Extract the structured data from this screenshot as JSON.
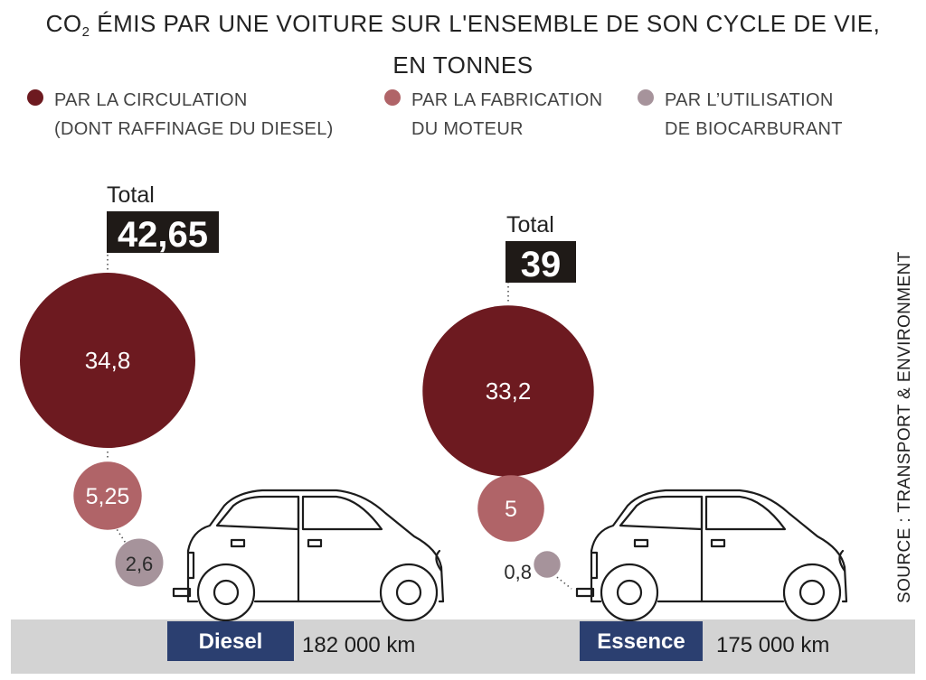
{
  "title": {
    "co": "CO",
    "sub": "2",
    "line1_rest": " ÉMIS PAR UNE VOITURE SUR L'ENSEMBLE DE SON CYCLE DE VIE,",
    "line2": "EN TONNES"
  },
  "legend": [
    {
      "line1": "PAR LA CIRCULATION",
      "line2": "(DONT RAFFINAGE DU DIESEL)",
      "color": "#6d1a20"
    },
    {
      "line1": "PAR LA FABRICATION",
      "line2": "DU MOTEUR",
      "color": "#b06468"
    },
    {
      "line1": "PAR L’UTILISATION",
      "line2": "DE BIOCARBURANT",
      "color": "#a6939b"
    }
  ],
  "source": "SOURCE : TRANSPORT & ENVIRONMENT",
  "colors": {
    "circulation": "#6d1a20",
    "fabrication": "#b06468",
    "biocarburant": "#a6939b",
    "label_box": "#1f1a17",
    "fuel_box": "#2b3f70",
    "ground": "#d3d3d3"
  },
  "chart_data": {
    "type": "bubble",
    "series_names": [
      "PAR LA CIRCULATION (DONT RAFFINAGE DU DIESEL)",
      "PAR LA FABRICATION DU MOTEUR",
      "PAR L’UTILISATION DE BIOCARBURANT"
    ],
    "groups": [
      {
        "fuel": "Diesel",
        "distance": "182 000 km",
        "total_label": "Total",
        "total": "42,65",
        "values": [
          {
            "label": "34,8",
            "value": 34.8
          },
          {
            "label": "5,25",
            "value": 5.25
          },
          {
            "label": "2,6",
            "value": 2.6
          }
        ]
      },
      {
        "fuel": "Essence",
        "distance": "175 000 km",
        "total_label": "Total",
        "total": "39",
        "values": [
          {
            "label": "33,2",
            "value": 33.2
          },
          {
            "label": "5",
            "value": 5
          },
          {
            "label": "0,8",
            "value": 0.8
          }
        ]
      }
    ]
  }
}
